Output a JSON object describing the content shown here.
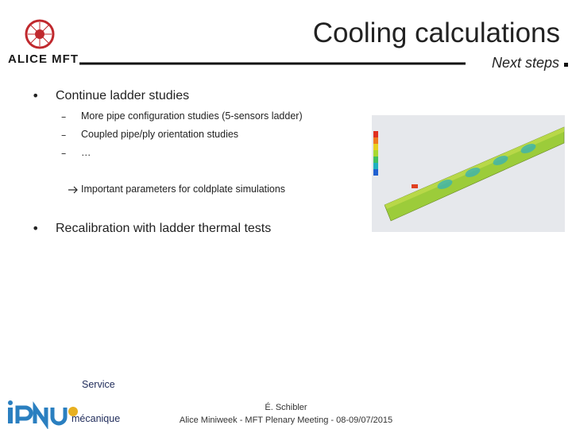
{
  "header": {
    "title": "Cooling calculations",
    "subtitle": "Next steps",
    "logo_text": "ALICE MFT"
  },
  "bullets": [
    {
      "text": "Continue ladder studies",
      "subitems": [
        "More pipe configuration studies (5-sensors ladder)",
        "Coupled pipe/ply orientation studies",
        "…"
      ],
      "note": "Important parameters for coldplate simulations"
    },
    {
      "text": "Recalibration with ladder thermal tests"
    }
  ],
  "footer": {
    "service": [
      "Service",
      "mécanique"
    ],
    "author": "É. Schibler",
    "meeting": "Alice Miniweek - MFT Plenary Meeting - 08-09/07/2015"
  }
}
